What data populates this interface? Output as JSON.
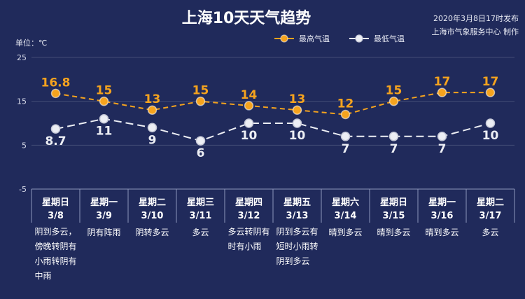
{
  "issue": {
    "time": "2020年3月8日17时发布",
    "producer": "上海市气象服务中心 制作"
  },
  "colors": {
    "background": "#202a5b",
    "axis": "#8d95bb",
    "grid": "rgba(255,255,255,0.16)",
    "tick": "#d6d9e8"
  },
  "chart_data": {
    "type": "line",
    "title": "上海10天天气趋势",
    "ylabel": "单位：℃",
    "ylim": [
      -5,
      25
    ],
    "yticks": [
      25,
      15,
      5,
      -5
    ],
    "grid": true,
    "legend": "top-center",
    "categories": [
      "3/8",
      "3/9",
      "3/10",
      "3/11",
      "3/12",
      "3/13",
      "3/14",
      "3/15",
      "3/16",
      "3/17"
    ],
    "series": [
      {
        "name": "最高气温",
        "color": "#f5a31e",
        "values": [
          16.8,
          15,
          13,
          15,
          14,
          13,
          12,
          15,
          17,
          17
        ]
      },
      {
        "name": "最低气温",
        "color": "#eceef4",
        "values": [
          8.7,
          11,
          9,
          6,
          10,
          10,
          7,
          7,
          7,
          10
        ]
      }
    ]
  },
  "days": [
    {
      "weekday": "星期日",
      "desc": [
        "阴到多云，",
        "傍晚转阴有",
        "小雨转阴有",
        "中雨"
      ]
    },
    {
      "weekday": "星期一",
      "desc": [
        "阴有阵雨"
      ]
    },
    {
      "weekday": "星期二",
      "desc": [
        "阴转多云"
      ]
    },
    {
      "weekday": "星期三",
      "desc": [
        "多云"
      ]
    },
    {
      "weekday": "星期四",
      "desc": [
        "多云转阴有",
        "时有小雨"
      ]
    },
    {
      "weekday": "星期五",
      "desc": [
        "阴到多云有",
        "短时小雨转",
        "阴到多云"
      ]
    },
    {
      "weekday": "星期六",
      "desc": [
        "晴到多云"
      ]
    },
    {
      "weekday": "星期日",
      "desc": [
        "晴到多云"
      ]
    },
    {
      "weekday": "星期一",
      "desc": [
        "晴到多云"
      ]
    },
    {
      "weekday": "星期二",
      "desc": [
        "多云"
      ]
    }
  ]
}
